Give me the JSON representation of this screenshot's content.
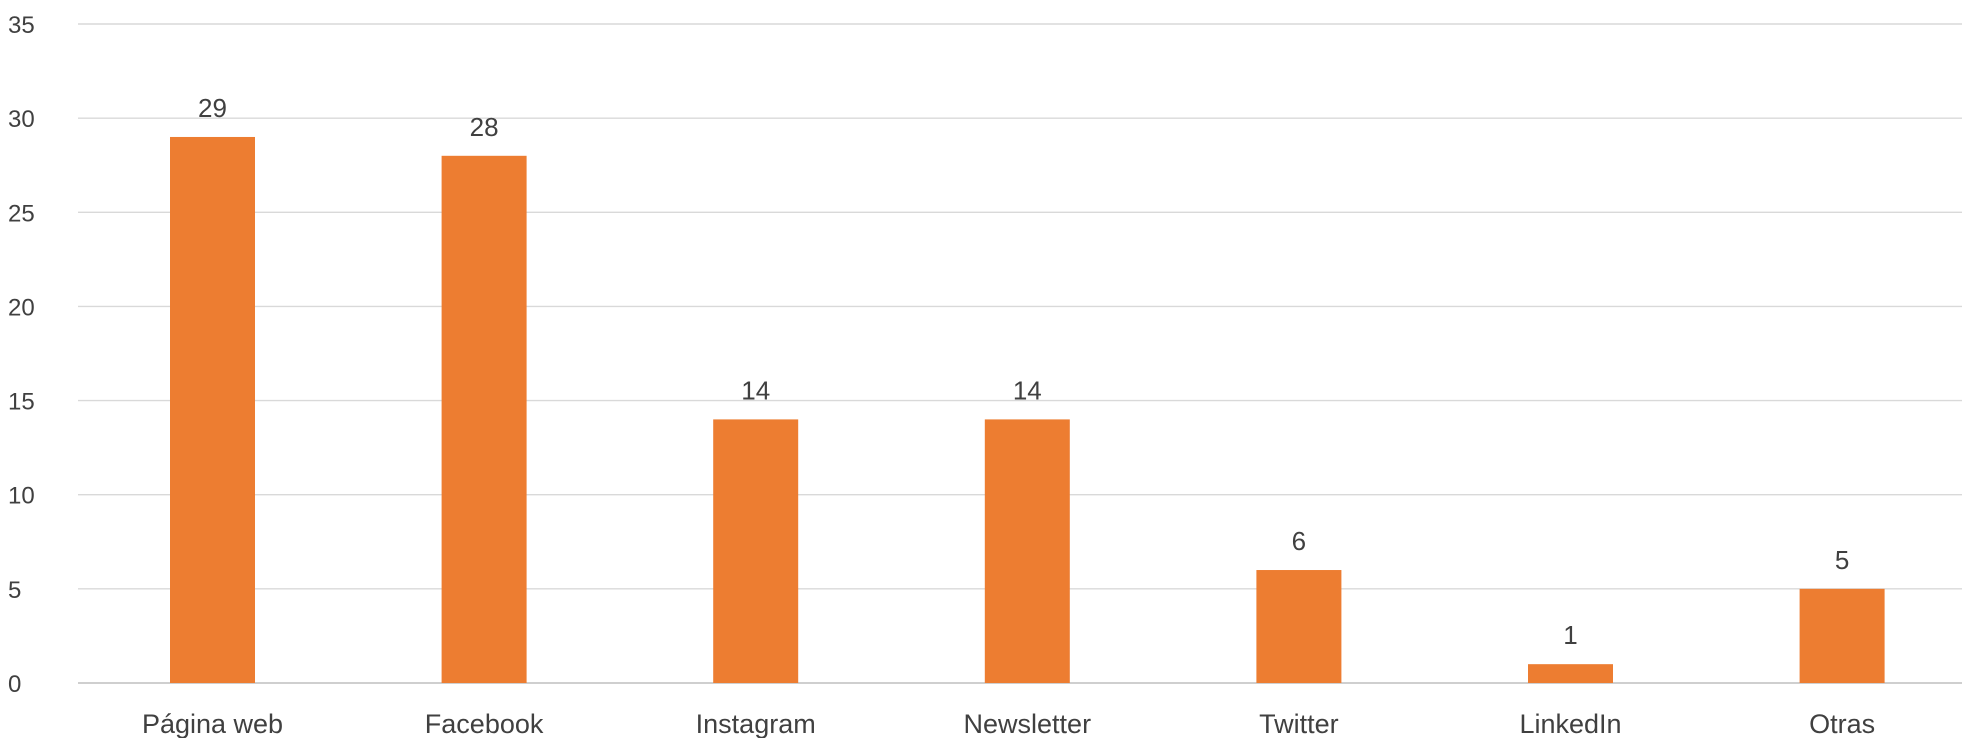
{
  "chart_data": {
    "type": "bar",
    "categories": [
      "Página web",
      "Facebook",
      "Instagram",
      "Newsletter",
      "Twitter",
      "LinkedIn",
      "Otras"
    ],
    "values": [
      29,
      28,
      14,
      14,
      6,
      1,
      5
    ],
    "data_labels": [
      "29",
      "28",
      "14",
      "14",
      "6",
      "1",
      "5"
    ],
    "y_ticks": [
      0,
      5,
      10,
      15,
      20,
      25,
      30,
      35
    ],
    "ylim": [
      0,
      35
    ],
    "grid": true,
    "legend": "none",
    "title": "",
    "xlabel": "",
    "ylabel": "",
    "colors": {
      "bar": "#ed7d31"
    }
  }
}
